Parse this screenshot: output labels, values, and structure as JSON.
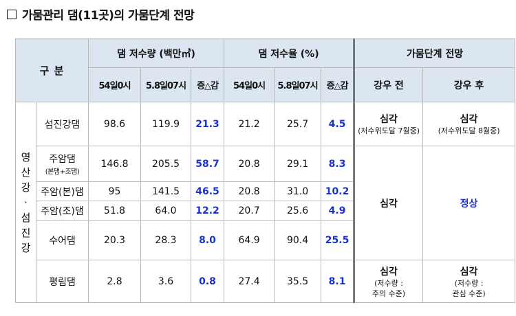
{
  "title": "가뭄관리 댐(11곳)의 가뭄단계 전망",
  "header": {
    "gubun": "구 분",
    "storage": "댐 저수량 (백만㎥)",
    "ratio": "댐 저수율 (%)",
    "drought": "가뭄단계 전망",
    "c_54": "54일0시",
    "c_58": "5.8일07시",
    "c_diff": "증△감",
    "c_before": "강우 전",
    "c_after": "강우 후"
  },
  "region": [
    "영",
    "산",
    "강",
    "·",
    "섬",
    "진",
    "강"
  ],
  "rows": [
    {
      "name": "섬진강댐",
      "sub": "",
      "s1": "98.6",
      "s2": "119.9",
      "sd": "21.3",
      "r1": "21.2",
      "r2": "25.7",
      "rd": "4.5"
    },
    {
      "name": "주암댐",
      "sub": "(본댐+조댐)",
      "s1": "146.8",
      "s2": "205.5",
      "sd": "58.7",
      "r1": "20.8",
      "r2": "29.1",
      "rd": "8.3"
    },
    {
      "name": "주암(본)댐",
      "sub": "",
      "s1": "95",
      "s2": "141.5",
      "sd": "46.5",
      "r1": "20.8",
      "r2": "31.0",
      "rd": "10.2"
    },
    {
      "name": "주암(조)댐",
      "sub": "",
      "s1": "51.8",
      "s2": "64.0",
      "sd": "12.2",
      "r1": "20.7",
      "r2": "25.6",
      "rd": "4.9"
    },
    {
      "name": "수어댐",
      "sub": "",
      "s1": "20.3",
      "s2": "28.3",
      "sd": "8.0",
      "r1": "64.9",
      "r2": "90.4",
      "rd": "25.5"
    },
    {
      "name": "평림댐",
      "sub": "",
      "s1": "2.8",
      "s2": "3.6",
      "sd": "0.8",
      "r1": "27.4",
      "r2": "35.5",
      "rd": "8.1"
    }
  ],
  "status": {
    "r0_before_main": "심각",
    "r0_before_sub": "(저수위도달 7월중)",
    "r0_after_main": "심각",
    "r0_after_sub": "(저수위도달 8월중)",
    "mid_before": "심각",
    "mid_after": "정상",
    "r5_before_main": "심각",
    "r5_before_sub1": "(저수량 :",
    "r5_before_sub2": "주의 수준)",
    "r5_after_main": "심각",
    "r5_after_sub1": "(저수량 :",
    "r5_after_sub2": "관심 수준)"
  },
  "colors": {
    "header_bg": "#dce6f1",
    "accent_blue": "#1a31d8"
  }
}
